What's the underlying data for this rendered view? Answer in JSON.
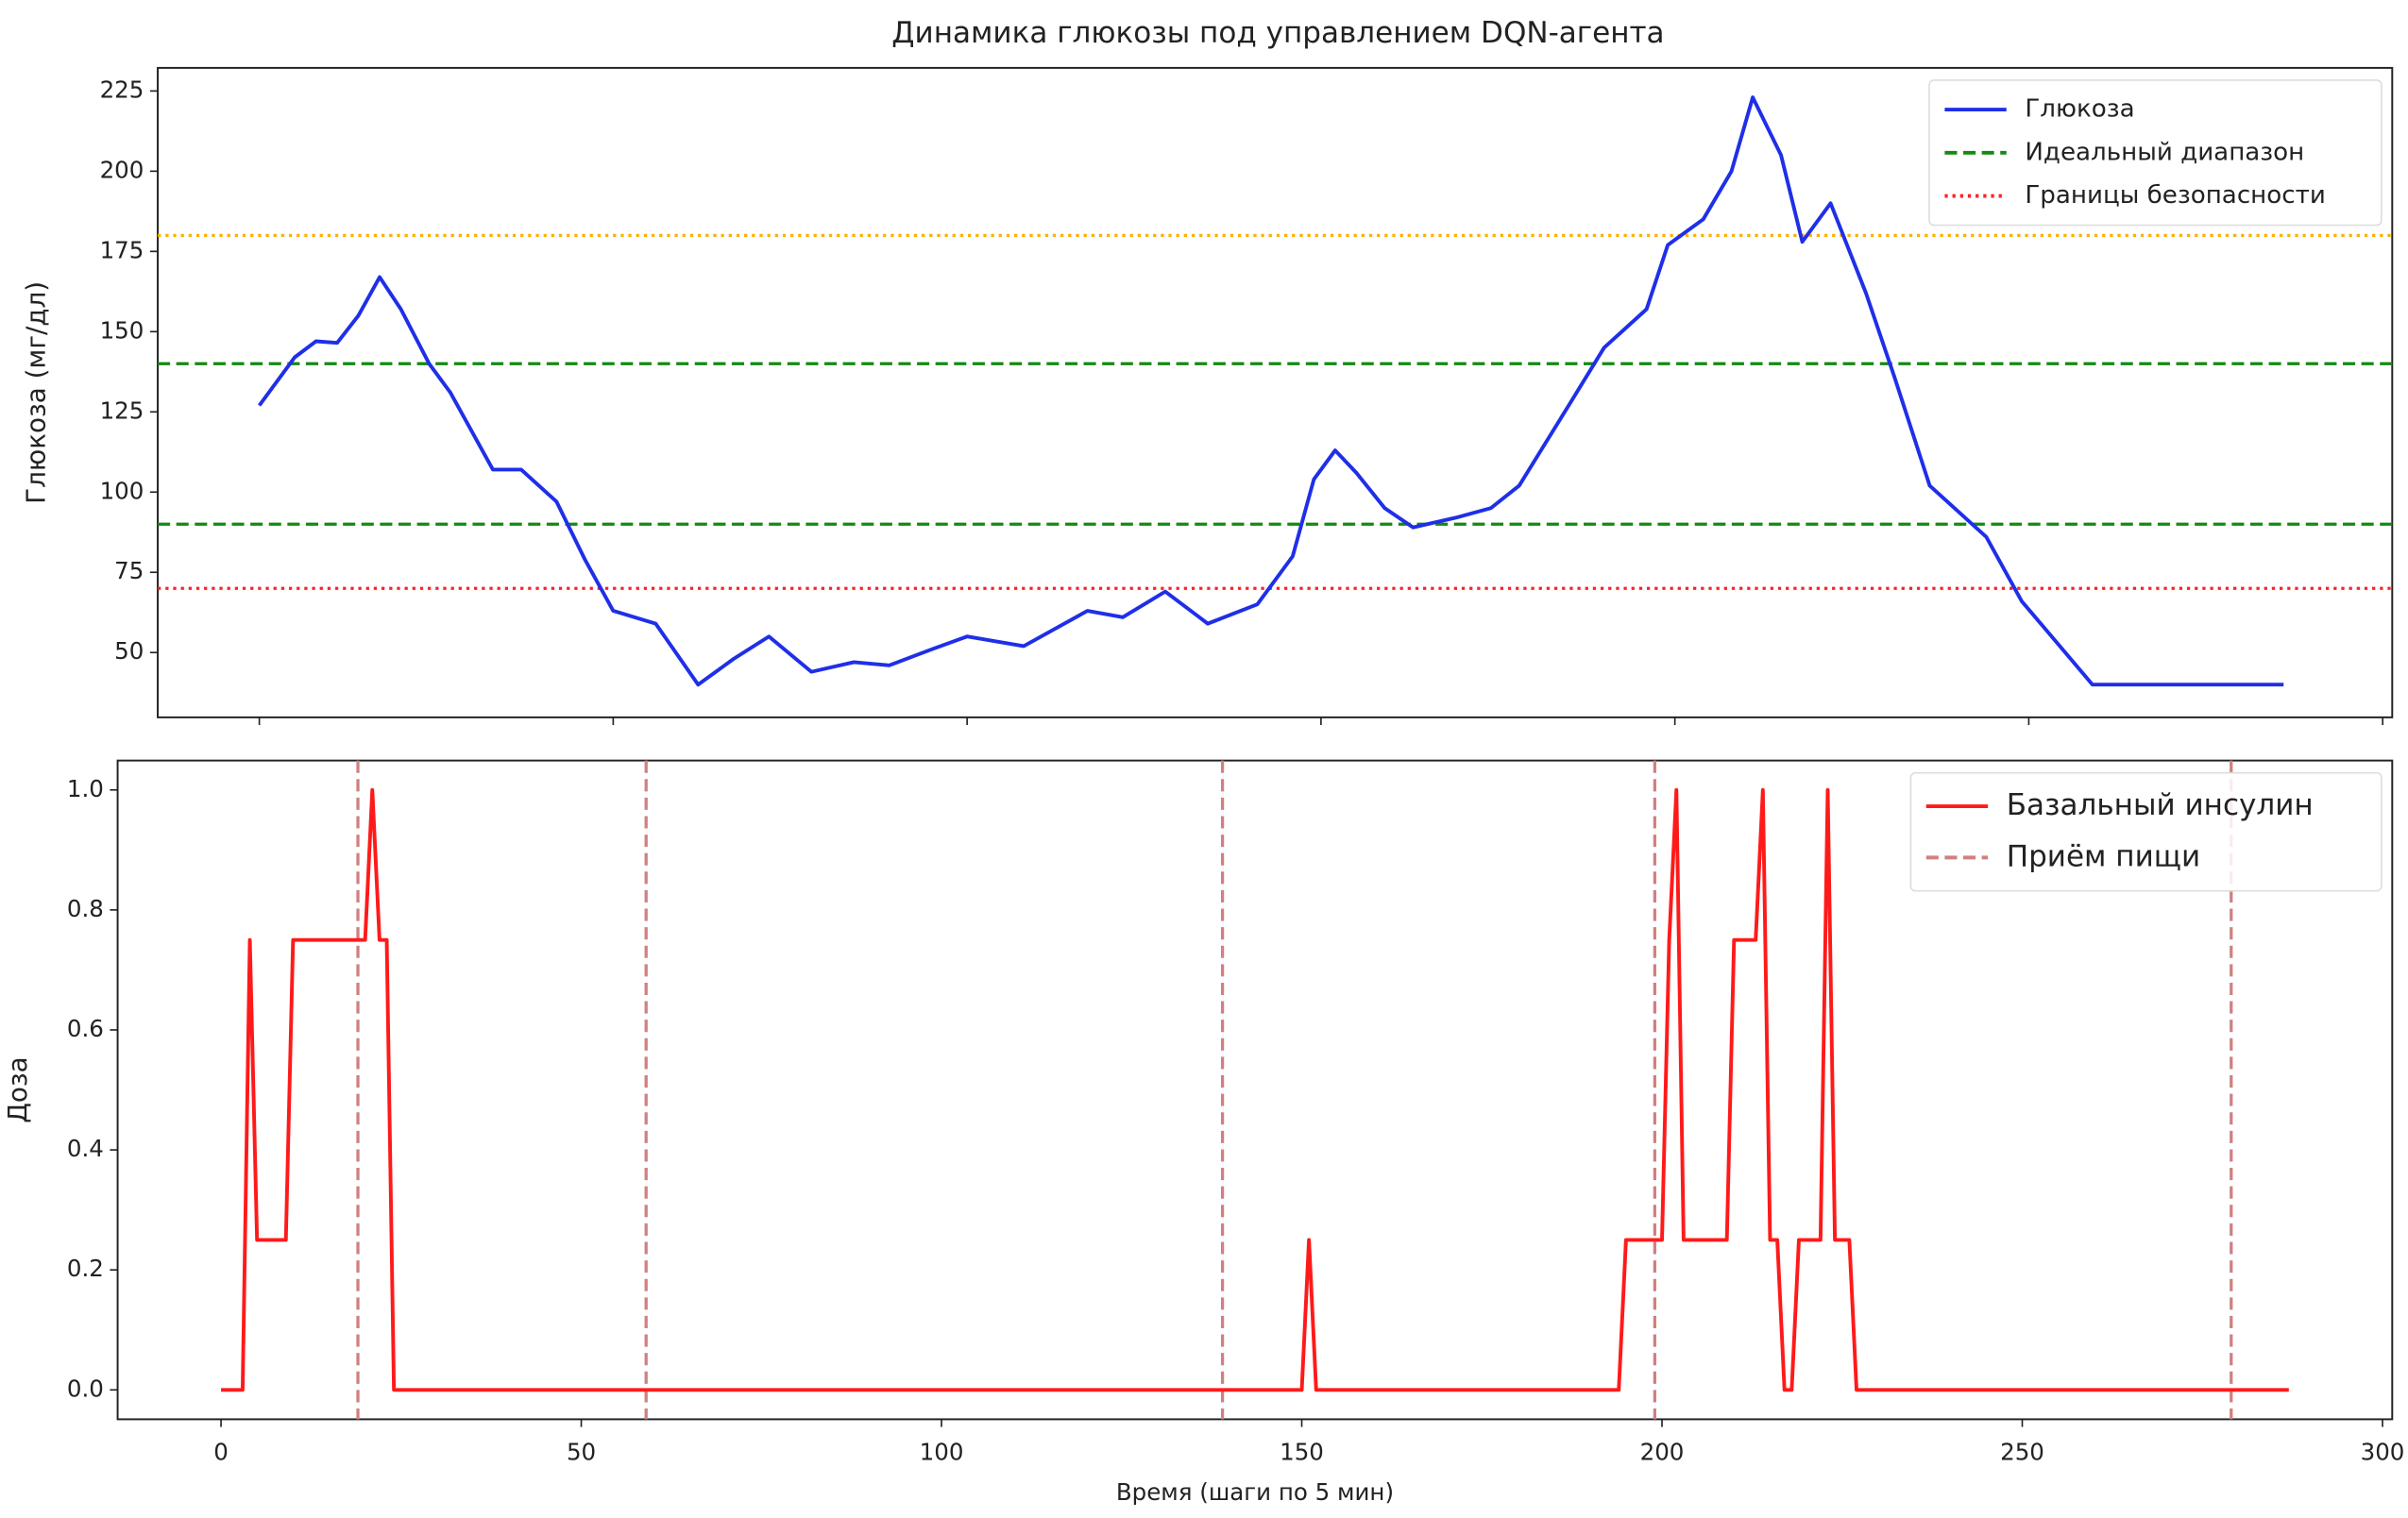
{
  "chart_data": [
    {
      "type": "line",
      "title": "Динамика глюкозы под управлением DQN-агента",
      "ylabel": "Глюкоза (мг/дл)",
      "x": [
        0,
        5,
        8,
        11,
        14,
        17,
        20,
        24,
        27,
        33,
        37,
        42,
        46,
        50,
        56,
        62,
        67,
        72,
        78,
        84,
        89,
        95,
        100,
        108,
        117,
        122,
        128,
        134,
        141,
        146,
        149,
        152,
        155,
        159,
        163,
        169,
        174,
        178,
        185,
        190,
        196,
        199,
        204,
        208,
        211,
        215,
        218,
        220,
        222,
        227,
        231,
        236,
        244,
        249,
        259,
        286
      ],
      "series": [
        {
          "name": "Глюкоза",
          "color": "#1f2fe8",
          "values": [
            127,
            142,
            147,
            146.5,
            155,
            167,
            157,
            140,
            131,
            107,
            107,
            97,
            79,
            63,
            59,
            40,
            48,
            55,
            44,
            47,
            46,
            51,
            55,
            52,
            63,
            61,
            69,
            59,
            65,
            80,
            104,
            113,
            106,
            95,
            89,
            92,
            95,
            102,
            127,
            145,
            157,
            177,
            185,
            200,
            223,
            205,
            178,
            184,
            190,
            162,
            136,
            102,
            86,
            66,
            40,
            40
          ]
        }
      ],
      "hlines": [
        {
          "value": 140,
          "name": "Идеальный диапазон",
          "color": "#138a13",
          "style": "dashed"
        },
        {
          "value": 90,
          "color": "#138a13",
          "style": "dashed"
        },
        {
          "value": 70,
          "name": "Границы безопасности",
          "color": "#ff2020",
          "style": "dotted"
        },
        {
          "value": 180,
          "color": "#ffb000",
          "style": "dotted"
        }
      ],
      "xlim": [
        -14.35,
        301.35
      ],
      "ylim": [
        29.8,
        232.2
      ],
      "yticks": [
        50,
        75,
        100,
        125,
        150,
        175,
        200,
        225
      ],
      "legend": "upper right"
    },
    {
      "type": "line",
      "ylabel": "Доза",
      "xlabel": "Время (шаги по 5 мин)",
      "x": [
        0,
        3,
        4,
        5,
        9,
        10,
        19,
        20,
        21,
        22,
        23,
        24,
        150,
        151,
        152,
        194,
        195,
        200,
        201,
        202,
        203,
        209,
        210,
        213,
        214,
        215,
        216,
        217,
        218,
        219,
        222,
        223,
        224,
        226,
        227,
        287
      ],
      "series": [
        {
          "name": "Базальный инсулин",
          "color": "#ff1a1a",
          "values": [
            0,
            0,
            0.75,
            0.25,
            0.25,
            0.75,
            0.75,
            0.75,
            1,
            0.75,
            0.75,
            0,
            0,
            0.25,
            0,
            0,
            0.25,
            0.25,
            0.75,
            1,
            0.25,
            0.25,
            0.75,
            0.75,
            1,
            0.25,
            0.25,
            0,
            0,
            0.25,
            0.25,
            1,
            0.25,
            0.25,
            0,
            0
          ]
        }
      ],
      "vlines": {
        "name": "Приём пищи",
        "color": "#d08080",
        "values": [
          19,
          59,
          139,
          199,
          279
        ]
      },
      "xlim": [
        -14.35,
        301.35
      ],
      "ylim": [
        -0.049,
        1.049
      ],
      "xticks": [
        0,
        50,
        100,
        150,
        200,
        250,
        300
      ],
      "yticks": [
        {
          "value": 0,
          "label": "0.0"
        },
        {
          "value": 0.2,
          "label": "0.2"
        },
        {
          "value": 0.4,
          "label": "0.4"
        },
        {
          "value": 0.6,
          "label": "0.6"
        },
        {
          "value": 0.8,
          "label": "0.8"
        },
        {
          "value": 1,
          "label": "1.0"
        }
      ],
      "legend": "upper right"
    }
  ]
}
